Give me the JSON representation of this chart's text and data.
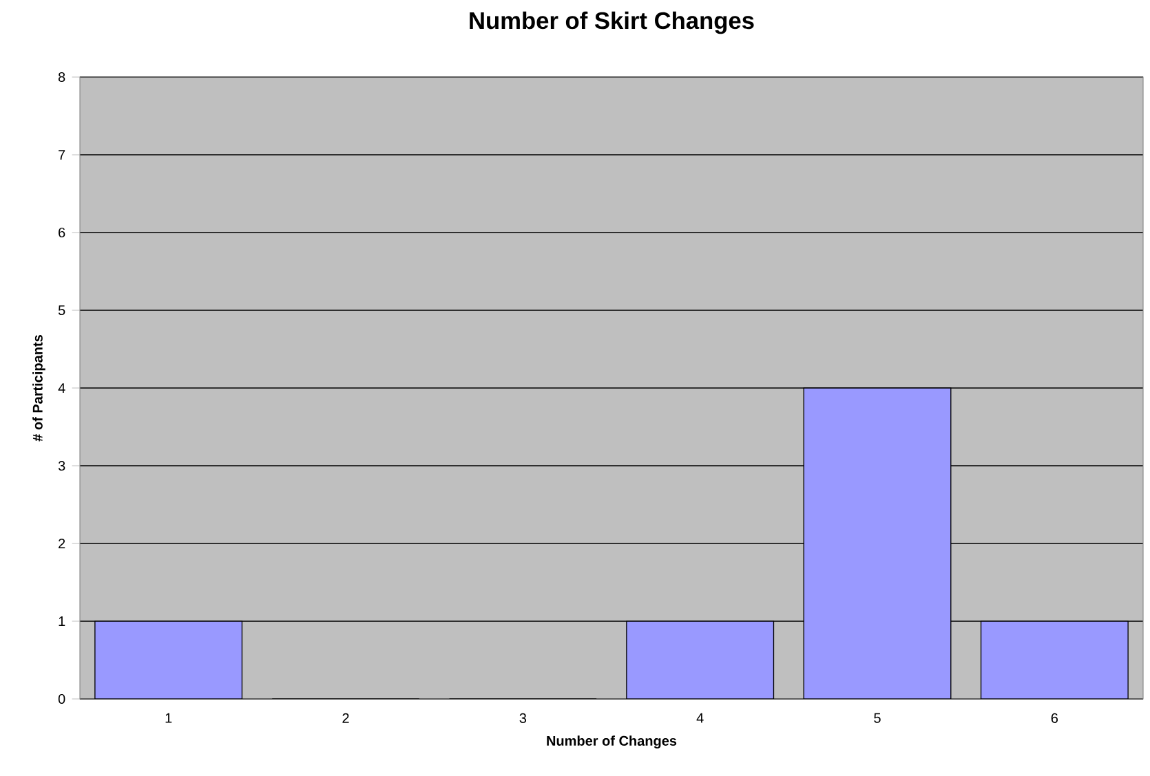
{
  "chart_data": {
    "type": "bar",
    "title": "Number of Skirt Changes",
    "xlabel": "Number of Changes",
    "ylabel": "# of Participants",
    "categories": [
      "1",
      "2",
      "3",
      "4",
      "5",
      "6"
    ],
    "values": [
      1,
      0,
      0,
      1,
      4,
      1
    ],
    "color": "#9999ff",
    "ylim": [
      0,
      8
    ],
    "yticks": [
      0,
      1,
      2,
      3,
      4,
      5,
      6,
      7,
      8
    ],
    "grid": "y"
  }
}
